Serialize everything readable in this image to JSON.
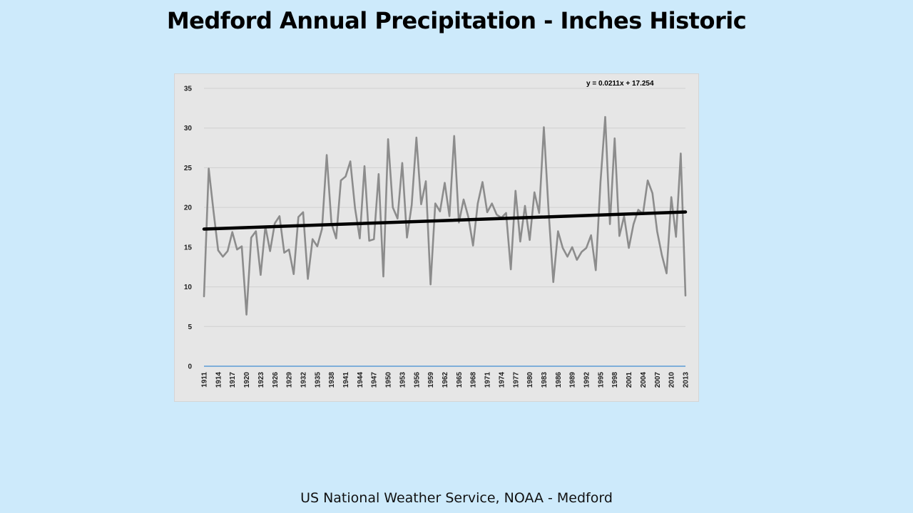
{
  "slide": {
    "title": "Medford Annual Precipitation -  Inches Historic",
    "source": "US National Weather Service, NOAA - Medford"
  },
  "chart_data": {
    "type": "line",
    "title": "",
    "xlabel": "",
    "ylabel": "",
    "ylim": [
      0,
      35
    ],
    "yticks": [
      0,
      5,
      10,
      15,
      20,
      25,
      30,
      35
    ],
    "x_start": 1911,
    "x_end": 2013,
    "xtick_labels": [
      "1911",
      "1914",
      "1917",
      "1920",
      "1923",
      "1926",
      "1929",
      "1932",
      "1935",
      "1938",
      "1941",
      "1944",
      "1947",
      "1950",
      "1953",
      "1956",
      "1959",
      "1962",
      "1965",
      "1968",
      "1971",
      "1974",
      "1977",
      "1980",
      "1983",
      "1986",
      "1989",
      "1992",
      "1995",
      "1998",
      "2001",
      "2004",
      "2007",
      "2010",
      "2013"
    ],
    "grid": "horizontal",
    "legend": "none",
    "series": [
      {
        "color": "#8c8c8c",
        "values": [
          8.8,
          24.9,
          19.6,
          14.6,
          13.8,
          14.5,
          16.9,
          14.7,
          15.1,
          6.5,
          16.2,
          17.0,
          11.5,
          17.6,
          14.5,
          18.0,
          18.9,
          14.3,
          14.7,
          11.6,
          18.8,
          19.4,
          11.0,
          16.0,
          15.1,
          17.3,
          26.6,
          18.0,
          16.1,
          23.4,
          23.9,
          25.8,
          19.9,
          16.1,
          25.2,
          15.8,
          16.0,
          24.2,
          11.3,
          28.6,
          20.0,
          18.6,
          25.6,
          16.2,
          20.3,
          28.8,
          20.4,
          23.3,
          10.3,
          20.5,
          19.5,
          23.1,
          18.9,
          29.0,
          18.1,
          21.0,
          18.8,
          15.2,
          20.5,
          23.2,
          19.4,
          20.5,
          19.1,
          18.7,
          19.3,
          12.2,
          22.1,
          15.7,
          20.2,
          15.9,
          21.9,
          19.3,
          30.1,
          19.6,
          10.6,
          17.0,
          14.9,
          13.8,
          15.0,
          13.4,
          14.4,
          14.9,
          16.5,
          12.1,
          23.2,
          31.4,
          17.9,
          28.7,
          16.4,
          18.9,
          14.9,
          17.9,
          19.7,
          19.2,
          23.4,
          21.8,
          17.0,
          14.0,
          11.7,
          21.3,
          16.3,
          26.8,
          8.9
        ]
      }
    ],
    "baseline_series": {
      "color": "#5b9bd5",
      "value": 0
    },
    "trendline": {
      "color": "#000000",
      "label": "y = 0.0211x  + 17.254",
      "slope": 0.0211,
      "intercept": 17.254
    }
  }
}
